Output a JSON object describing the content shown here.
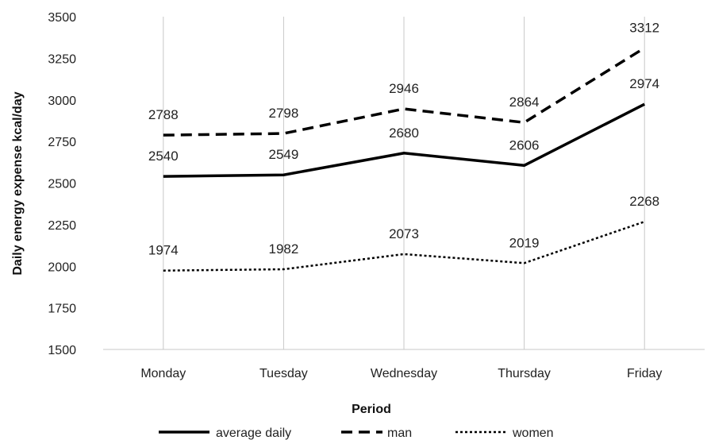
{
  "chart_data": {
    "type": "line",
    "categories": [
      "Monday",
      "Tuesday",
      "Wednesday",
      "Thursday",
      "Friday"
    ],
    "series": [
      {
        "name": "average daily",
        "values": [
          2540,
          2549,
          2680,
          2606,
          2974
        ],
        "style": "solid"
      },
      {
        "name": "man",
        "values": [
          2788,
          2798,
          2946,
          2864,
          3312
        ],
        "style": "dashed"
      },
      {
        "name": "women",
        "values": [
          1974,
          1982,
          2073,
          2019,
          2268
        ],
        "style": "dotted"
      }
    ],
    "xlabel": "Period",
    "ylabel": "Daily energy expense  kcal/day",
    "ylim": [
      1500,
      3500
    ],
    "yticks": [
      1500,
      1750,
      2000,
      2250,
      2500,
      2750,
      3000,
      3250,
      3500
    ],
    "grid": "vertical",
    "legend": "bottom",
    "line_color": "#000000",
    "grid_color": "#c8c8c8"
  }
}
